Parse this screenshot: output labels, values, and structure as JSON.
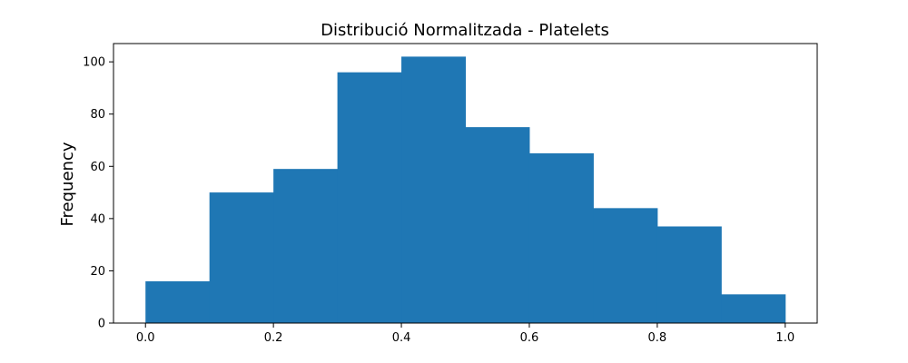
{
  "chart_data": {
    "type": "bar",
    "title": "Distribució Normalitzada - Platelets",
    "xlabel": "",
    "ylabel": "Frequency",
    "bin_edges": [
      0.0,
      0.1,
      0.2,
      0.3,
      0.4,
      0.5,
      0.6,
      0.7,
      0.8,
      0.9,
      1.0
    ],
    "values": [
      16,
      50,
      59,
      96,
      102,
      75,
      65,
      44,
      37,
      11
    ],
    "xlim": [
      -0.05,
      1.05
    ],
    "ylim": [
      0,
      107
    ],
    "xticks": [
      "0.0",
      "0.2",
      "0.4",
      "0.6",
      "0.8",
      "1.0"
    ],
    "yticks": [
      "0",
      "20",
      "40",
      "60",
      "80",
      "100"
    ],
    "grid": false,
    "bar_color": "#1f77b4"
  }
}
